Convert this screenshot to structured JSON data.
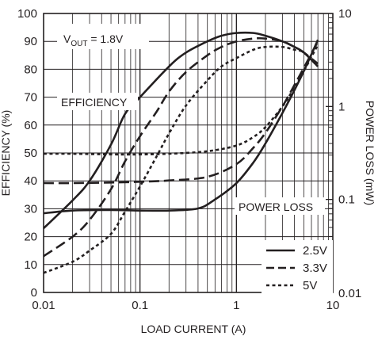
{
  "chart_data": {
    "type": "line",
    "title": "",
    "annotation_vout": {
      "prefix": "V",
      "sub": "OUT",
      "suffix": " = 1.8V"
    },
    "label_efficiency": "EFFICIENCY",
    "label_power_loss": "POWER LOSS",
    "xlabel": "LOAD CURRENT (A)",
    "ylabel_left": "EFFICIENCY (%)",
    "ylabel_right": "POWER LOSS (mW)",
    "x_scale": "log",
    "xlim": [
      0.01,
      10
    ],
    "x_ticks": [
      "0.01",
      "0.1",
      "1",
      "10"
    ],
    "y_left_lim": [
      0,
      100
    ],
    "y_left_ticks": [
      "0",
      "10",
      "20",
      "30",
      "40",
      "50",
      "60",
      "70",
      "80",
      "90",
      "100"
    ],
    "y_right_scale": "log",
    "y_right_lim": [
      0.01,
      10
    ],
    "y_right_ticks": [
      "0.01",
      "0.1",
      "1",
      "10"
    ],
    "grid": true,
    "legend_position": "bottom-right",
    "legend": [
      {
        "name": "2.5V",
        "dash": "solid"
      },
      {
        "name": "3.3V",
        "dash": "dashed"
      },
      {
        "name": "5V",
        "dash": "dotted"
      }
    ],
    "series": [
      {
        "name": "2.5V",
        "metric": "efficiency",
        "axis": "left",
        "dash": "solid",
        "x": [
          0.01,
          0.02,
          0.03,
          0.05,
          0.07,
          0.1,
          0.2,
          0.3,
          0.5,
          0.7,
          1,
          1.5,
          2,
          3,
          4,
          5,
          7
        ],
        "y": [
          23,
          33,
          40,
          53,
          64,
          70,
          81,
          86,
          90,
          92,
          93,
          93,
          92,
          90,
          88,
          86,
          81
        ]
      },
      {
        "name": "3.3V",
        "metric": "efficiency",
        "axis": "left",
        "dash": "dashed",
        "x": [
          0.01,
          0.02,
          0.03,
          0.05,
          0.07,
          0.1,
          0.15,
          0.2,
          0.3,
          0.5,
          0.7,
          1,
          1.5,
          2,
          3,
          4,
          5,
          7
        ],
        "y": [
          13,
          20,
          26,
          37,
          47,
          56,
          65,
          72,
          79,
          85,
          88,
          90,
          91,
          91,
          90,
          88,
          86,
          82
        ]
      },
      {
        "name": "5V",
        "metric": "efficiency",
        "axis": "left",
        "dash": "dotted",
        "x": [
          0.01,
          0.02,
          0.03,
          0.05,
          0.07,
          0.1,
          0.15,
          0.2,
          0.3,
          0.5,
          0.7,
          1,
          1.5,
          2,
          3,
          4,
          5,
          7
        ],
        "y": [
          7,
          11,
          15,
          21,
          29,
          38,
          49,
          57,
          67,
          76,
          81,
          84,
          87,
          88,
          88,
          87,
          86,
          81
        ]
      },
      {
        "name": "2.5V",
        "metric": "power_loss",
        "axis": "right",
        "dash": "solid",
        "x": [
          0.01,
          0.02,
          0.05,
          0.1,
          0.2,
          0.4,
          0.6,
          1,
          1.5,
          2,
          3,
          4,
          5,
          7
        ],
        "y": [
          0.071,
          0.076,
          0.077,
          0.076,
          0.076,
          0.08,
          0.1,
          0.15,
          0.25,
          0.4,
          0.85,
          1.5,
          2.4,
          5.2
        ]
      },
      {
        "name": "3.3V",
        "metric": "power_loss",
        "axis": "right",
        "dash": "dashed",
        "x": [
          0.01,
          0.02,
          0.05,
          0.1,
          0.2,
          0.5,
          1,
          1.5,
          2,
          3,
          4,
          5,
          7
        ],
        "y": [
          0.15,
          0.15,
          0.152,
          0.155,
          0.16,
          0.175,
          0.24,
          0.36,
          0.52,
          1.0,
          1.7,
          2.6,
          5.0
        ]
      },
      {
        "name": "5V",
        "metric": "power_loss",
        "axis": "right",
        "dash": "dotted",
        "x": [
          0.01,
          0.02,
          0.05,
          0.1,
          0.2,
          0.5,
          1,
          1.5,
          2,
          3,
          4,
          5,
          7
        ],
        "y": [
          0.31,
          0.31,
          0.305,
          0.305,
          0.31,
          0.33,
          0.38,
          0.47,
          0.6,
          1.0,
          1.6,
          2.4,
          4.6
        ]
      }
    ]
  }
}
